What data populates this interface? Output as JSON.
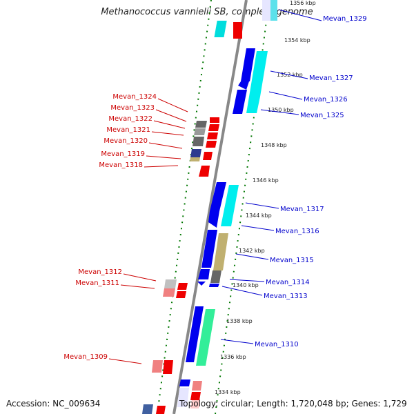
{
  "title": "Methanococcus vannielii SB, complete genome",
  "footer": {
    "accession": "Accession: NC_009634",
    "topology": "Topology: circular; Length: 1,720,048 bp; Genes: 1,729"
  },
  "colors": {
    "minus_strand_label": "#cc0000",
    "plus_strand_label": "#0000cc",
    "backbone": "#888888",
    "tick_green": "#007700",
    "red": "#ee0000",
    "pink": "#f08080",
    "dark_blue": "#0000ee",
    "light_blue": "#eeeeff",
    "cyan": "#00eeee",
    "gray": "#6a6a6a",
    "light_gray": "#c0c0c0",
    "olive": "#c0b070",
    "green": "#33ee99",
    "slate": "#4060a0"
  },
  "kbp_ticks": [
    "1356 kbp",
    "1354 kbp",
    "1352 kbp",
    "1350 kbp",
    "1348 kbp",
    "1346 kbp",
    "1344 kbp",
    "1342 kbp",
    "1340 kbp",
    "1338 kbp",
    "1336 kbp",
    "1334 kbp"
  ],
  "left_labels": [
    "Mevan_1324",
    "Mevan_1323",
    "Mevan_1322",
    "Mevan_1321",
    "Mevan_1320",
    "Mevan_1319",
    "Mevan_1318",
    "Mevan_1312",
    "Mevan_1311",
    "Mevan_1309"
  ],
  "right_labels": [
    "Mevan_1329",
    "Mevan_1327",
    "Mevan_1326",
    "Mevan_1325",
    "Mevan_1317",
    "Mevan_1316",
    "Mevan_1315",
    "Mevan_1314",
    "Mevan_1313",
    "Mevan_1310"
  ]
}
